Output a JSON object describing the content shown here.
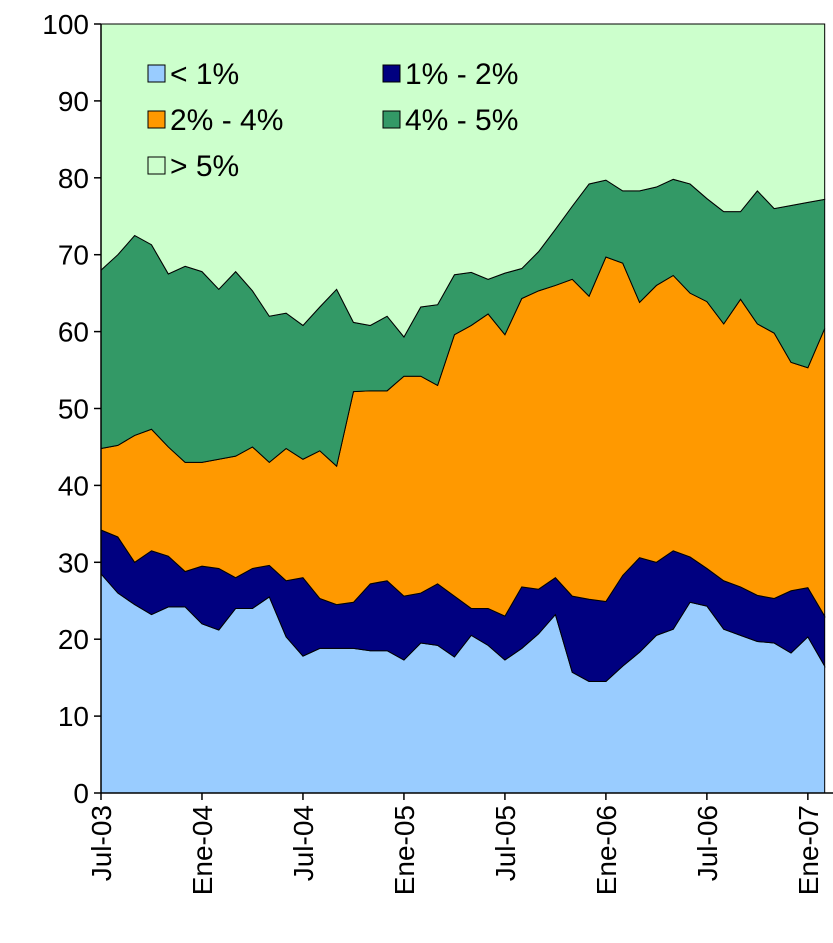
{
  "chart_data": {
    "type": "stacked_area",
    "categories": [
      "Jul-03",
      null,
      null,
      null,
      null,
      null,
      "Ene-04",
      null,
      null,
      null,
      null,
      null,
      "Jul-04",
      null,
      null,
      null,
      null,
      null,
      "Ene-05",
      null,
      null,
      null,
      null,
      null,
      "Jul-05",
      null,
      null,
      null,
      null,
      null,
      "Ene-06",
      null,
      null,
      null,
      null,
      null,
      "Jul-06",
      null,
      null,
      null,
      null,
      null,
      "Ene-07",
      null
    ],
    "series": [
      {
        "name": "< 1%",
        "color": "#99ccff",
        "values": [
          28.5,
          26,
          24.5,
          23.2,
          24.2,
          24.2,
          22,
          21.2,
          24,
          24,
          25.5,
          20.3,
          17.8,
          18.8,
          18.8,
          18.8,
          18.5,
          18.5,
          17.3,
          19.5,
          19.2,
          17.7,
          20.5,
          19.2,
          17.3,
          18.8,
          20.7,
          23.2,
          15.7,
          14.5,
          14.5,
          16.5,
          18.3,
          20.5,
          21.3,
          24.8,
          24.3,
          21.3,
          20.5,
          19.7,
          19.5,
          18.2,
          20.3,
          16.5
        ]
      },
      {
        "name": "1% - 2%",
        "color": "#000080",
        "values": [
          5.7,
          7.3,
          5.5,
          8.3,
          6.6,
          4.6,
          7.5,
          8,
          4,
          5.2,
          4.1,
          7.3,
          10.2,
          6.5,
          5.7,
          6,
          8.7,
          9.1,
          8.3,
          6.5,
          8,
          7.9,
          3.5,
          4.8,
          5.7,
          8,
          5.8,
          4.8,
          9.9,
          10.7,
          10.4,
          11.8,
          12.3,
          9.5,
          10.2,
          5.9,
          4.9,
          6.3,
          6.3,
          6,
          5.8,
          8.1,
          6.4,
          6.5
        ]
      },
      {
        "name": "2% - 4%",
        "color": "#ff9900",
        "values": [
          10.6,
          11.9,
          16.5,
          15.8,
          14.2,
          14.2,
          13.5,
          14.2,
          15.8,
          15.8,
          13.4,
          17.2,
          15.4,
          19.2,
          18,
          27.4,
          25.1,
          24.7,
          28.6,
          28.2,
          25.8,
          34,
          36.8,
          38.3,
          36.6,
          37.5,
          38.8,
          38,
          41.2,
          39.4,
          44.8,
          40.6,
          33.2,
          36,
          35.8,
          34.3,
          34.7,
          33.4,
          37.4,
          35.3,
          34.5,
          29.7,
          28.6,
          37.4
        ]
      },
      {
        "name": "4% - 5%",
        "color": "#339966",
        "values": [
          23.2,
          24.8,
          26,
          24,
          22.5,
          25.5,
          24.8,
          22.1,
          24,
          20.3,
          19,
          17.6,
          17.4,
          18.7,
          23,
          9,
          8.5,
          9.7,
          5.1,
          9,
          10.5,
          7.8,
          6.9,
          4.5,
          8,
          3.9,
          5.1,
          7.3,
          9.5,
          14.6,
          10,
          9.4,
          14.5,
          12.8,
          12.5,
          14.2,
          13.4,
          14.6,
          11.4,
          17.3,
          16.2,
          20.4,
          21.5,
          16.8
        ]
      },
      {
        "name": "> 5%",
        "color": "#ccffcc",
        "values": [
          32,
          30,
          27.5,
          28.7,
          32.5,
          31.5,
          32.2,
          34.5,
          32.2,
          34.7,
          38,
          37.6,
          39.2,
          36.8,
          34.5,
          38.8,
          39.2,
          38,
          40.7,
          36.8,
          36.5,
          32.6,
          32.3,
          33.2,
          32.4,
          31.8,
          29.6,
          26.7,
          23.7,
          20.8,
          20.3,
          21.7,
          21.7,
          21.2,
          20.2,
          20.8,
          22.7,
          24.4,
          24.4,
          21.7,
          24,
          23.6,
          23.2,
          22.8
        ]
      }
    ],
    "ylim": [
      0,
      100
    ],
    "yticks": [
      0,
      10,
      20,
      30,
      40,
      50,
      60,
      70,
      80,
      90,
      100
    ],
    "grid": false,
    "legend": "upper left"
  }
}
